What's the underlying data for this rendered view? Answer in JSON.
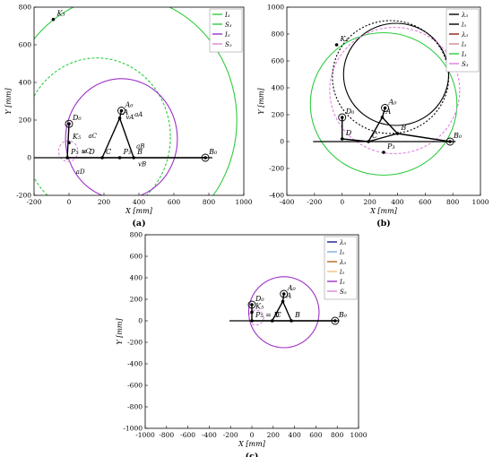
{
  "chart_data": [
    {
      "type": "line",
      "panel_label": "(a)",
      "xlabel": "X [mm]",
      "ylabel": "Y [mm]",
      "xlim": [
        -200,
        1000
      ],
      "ylim": [
        -200,
        800
      ],
      "xticks": [
        -200,
        0,
        200,
        400,
        600,
        800,
        1000
      ],
      "yticks": [
        -200,
        0,
        200,
        400,
        600,
        800
      ],
      "legend": {
        "position": "top-right",
        "entries": [
          {
            "label": "I3",
            "color": "#2ecc40"
          },
          {
            "label": "S3",
            "color": "#2ecc40"
          },
          {
            "label": "I5",
            "color": "#9b30c8"
          },
          {
            "label": "S5",
            "color": "#d88ad8"
          }
        ]
      },
      "points": [
        {
          "label": "K3",
          "x": -90,
          "y": 735
        },
        {
          "label": "D0",
          "x": 0,
          "y": 180
        },
        {
          "label": "K5",
          "x": 0,
          "y": 80
        },
        {
          "label": "P5 = D",
          "x": -10,
          "y": 0
        },
        {
          "label": "C",
          "x": 190,
          "y": 0
        },
        {
          "label": "A0",
          "x": 300,
          "y": 250
        },
        {
          "label": "A",
          "x": 290,
          "y": 210
        },
        {
          "label": "P3",
          "x": 290,
          "y": 0
        },
        {
          "label": "B",
          "x": 370,
          "y": 0
        },
        {
          "label": "B0",
          "x": 780,
          "y": 0
        }
      ],
      "annotations": [
        "vA",
        "aA",
        "aB",
        "vB",
        "aC",
        "vC",
        "aD"
      ],
      "curves": [
        {
          "name": "I3",
          "kind": "circle",
          "cx": 300,
          "cy": 200,
          "r": 660
        },
        {
          "name": "S3",
          "kind": "circle",
          "cx": 160,
          "cy": 110,
          "r": 420
        },
        {
          "name": "I5",
          "kind": "circle",
          "cx": 300,
          "cy": 100,
          "r": 320
        },
        {
          "name": "S5",
          "kind": "circle",
          "cx": -5,
          "cy": 35,
          "r": 55
        }
      ]
    },
    {
      "type": "line",
      "panel_label": "(b)",
      "xlabel": "X [mm]",
      "ylabel": "Y [mm]",
      "xlim": [
        -400,
        1000
      ],
      "ylim": [
        -400,
        1000
      ],
      "xticks": [
        -400,
        -200,
        0,
        200,
        400,
        600,
        800,
        1000
      ],
      "yticks": [
        -400,
        -200,
        0,
        200,
        400,
        600,
        800,
        1000
      ],
      "legend": {
        "position": "top-right",
        "entries": [
          {
            "label": "λ3",
            "color": "#000000"
          },
          {
            "label": "l3",
            "color": "#000000"
          },
          {
            "label": "λ3",
            "color": "#8b1a1a"
          },
          {
            "label": "l3",
            "color": "#d08a8a"
          },
          {
            "label": "I3",
            "color": "#2ecc40"
          },
          {
            "label": "S3",
            "color": "#e080e0"
          }
        ]
      },
      "points": [
        {
          "label": "K3",
          "x": -40,
          "y": 720
        },
        {
          "label": "D0",
          "x": 0,
          "y": 180
        },
        {
          "label": "D",
          "x": 0,
          "y": 20
        },
        {
          "label": "C",
          "x": 190,
          "y": 0
        },
        {
          "label": "A0",
          "x": 310,
          "y": 250
        },
        {
          "label": "A",
          "x": 290,
          "y": 180
        },
        {
          "label": "P3",
          "x": 300,
          "y": -80
        },
        {
          "label": "B",
          "x": 400,
          "y": 60
        },
        {
          "label": "B0",
          "x": 780,
          "y": 0
        }
      ],
      "curves": [
        {
          "name": "I3",
          "kind": "circle",
          "cx": 300,
          "cy": 280,
          "r": 530
        },
        {
          "name": "λ3",
          "kind": "circle",
          "cx": 390,
          "cy": 500,
          "r": 380
        },
        {
          "name": "S3",
          "kind": "circle",
          "cx": 380,
          "cy": 380,
          "r": 470
        },
        {
          "name": "l3",
          "kind": "circle",
          "cx": 350,
          "cy": 480,
          "r": 420
        }
      ]
    },
    {
      "type": "line",
      "panel_label": "(c)",
      "xlabel": "X [mm]",
      "ylabel": "Y [mm]",
      "xlim": [
        -1000,
        1000
      ],
      "ylim": [
        -1000,
        800
      ],
      "xticks": [
        -1000,
        -800,
        -600,
        -400,
        -200,
        0,
        200,
        400,
        600,
        800,
        1000
      ],
      "yticks": [
        -1000,
        -800,
        -600,
        -400,
        -200,
        0,
        200,
        400,
        600,
        800
      ],
      "legend": {
        "position": "top-right",
        "entries": [
          {
            "label": "λ5",
            "color": "#1a1a8a"
          },
          {
            "label": "l5",
            "color": "#7fa7e0"
          },
          {
            "label": "λ5",
            "color": "#b8661a"
          },
          {
            "label": "l5",
            "color": "#f0c080"
          },
          {
            "label": "I5",
            "color": "#9b30c8"
          },
          {
            "label": "S5",
            "color": "#d88ad8"
          }
        ]
      },
      "points": [
        {
          "label": "A0",
          "x": 300,
          "y": 250
        },
        {
          "label": "A",
          "x": 290,
          "y": 180
        },
        {
          "label": "D0",
          "x": 0,
          "y": 150
        },
        {
          "label": "K5",
          "x": 0,
          "y": 80
        },
        {
          "label": "P5 = D",
          "x": 0,
          "y": 0
        },
        {
          "label": "C",
          "x": 190,
          "y": 0
        },
        {
          "label": "B",
          "x": 370,
          "y": 0
        },
        {
          "label": "B0",
          "x": 780,
          "y": 0
        }
      ],
      "curves": [
        {
          "name": "I5",
          "kind": "circle",
          "cx": 300,
          "cy": 80,
          "r": 330
        },
        {
          "name": "S5",
          "kind": "circle",
          "cx": 40,
          "cy": 30,
          "r": 70
        }
      ]
    }
  ]
}
